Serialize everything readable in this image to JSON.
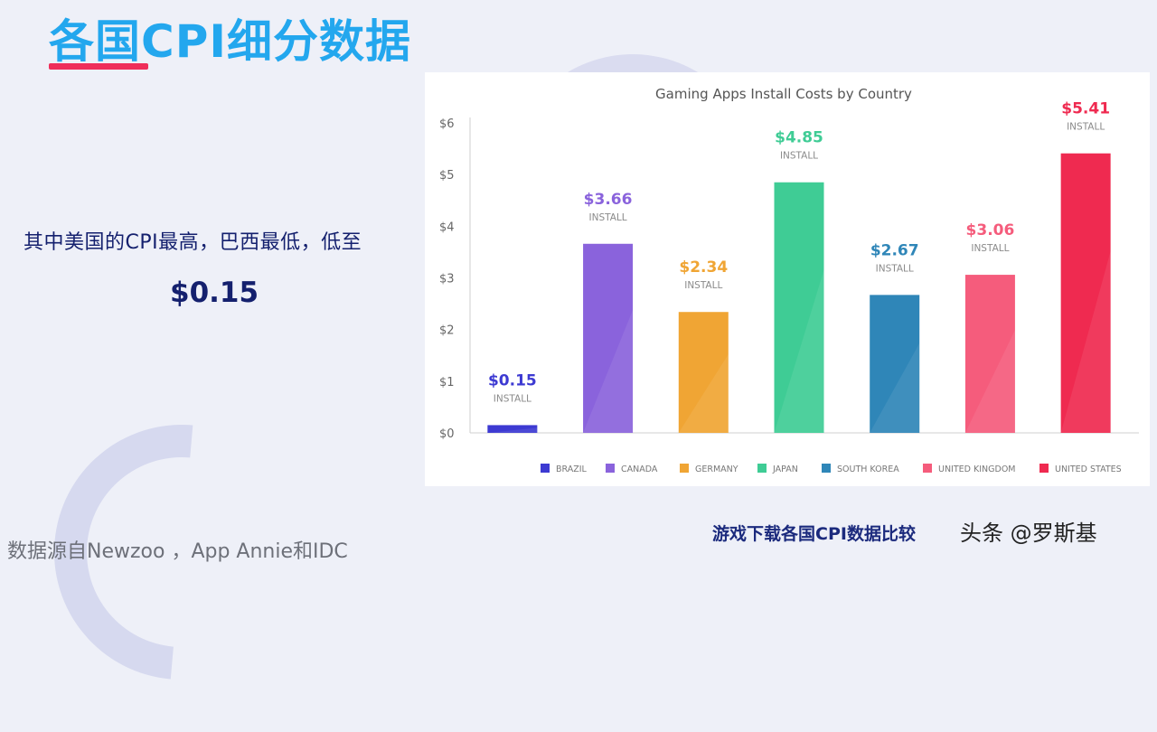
{
  "page": {
    "title": "各国CPI细分数据",
    "subtitle": "其中美国的CPI最高，巴西最低，低至",
    "highlight_value": "$0.15",
    "source_note": "数据源自Newzoo ，App Annie和IDC",
    "caption": "游戏下载各国CPI数据比较",
    "watermark": "头条 @罗斯基",
    "colors": {
      "title": "#23a7ee",
      "accent": "#ef2e5a",
      "text_dark": "#14206e"
    }
  },
  "chart_data": {
    "type": "bar",
    "title": "Gaming Apps Install Costs by Country",
    "categories": [
      "BRAZIL",
      "CANADA",
      "GERMANY",
      "JAPAN",
      "SOUTH KOREA",
      "UNITED KINGDOM",
      "UNITED STATES"
    ],
    "values": [
      0.15,
      3.66,
      2.34,
      4.85,
      2.67,
      3.06,
      5.41
    ],
    "value_labels": [
      "$0.15",
      "$3.66",
      "$2.34",
      "$4.85",
      "$2.67",
      "$3.06",
      "$5.41"
    ],
    "bar_sublabel": "INSTALL",
    "colors": [
      "#3d3ad2",
      "#8a63dc",
      "#f0a534",
      "#3fcc95",
      "#2f86b8",
      "#f55c7c",
      "#ef2a50"
    ],
    "ylim": [
      0,
      6
    ],
    "yticks": [
      "$0",
      "$1",
      "$2",
      "$3",
      "$4",
      "$5",
      "$6"
    ],
    "legend_position": "bottom",
    "grid": false
  }
}
